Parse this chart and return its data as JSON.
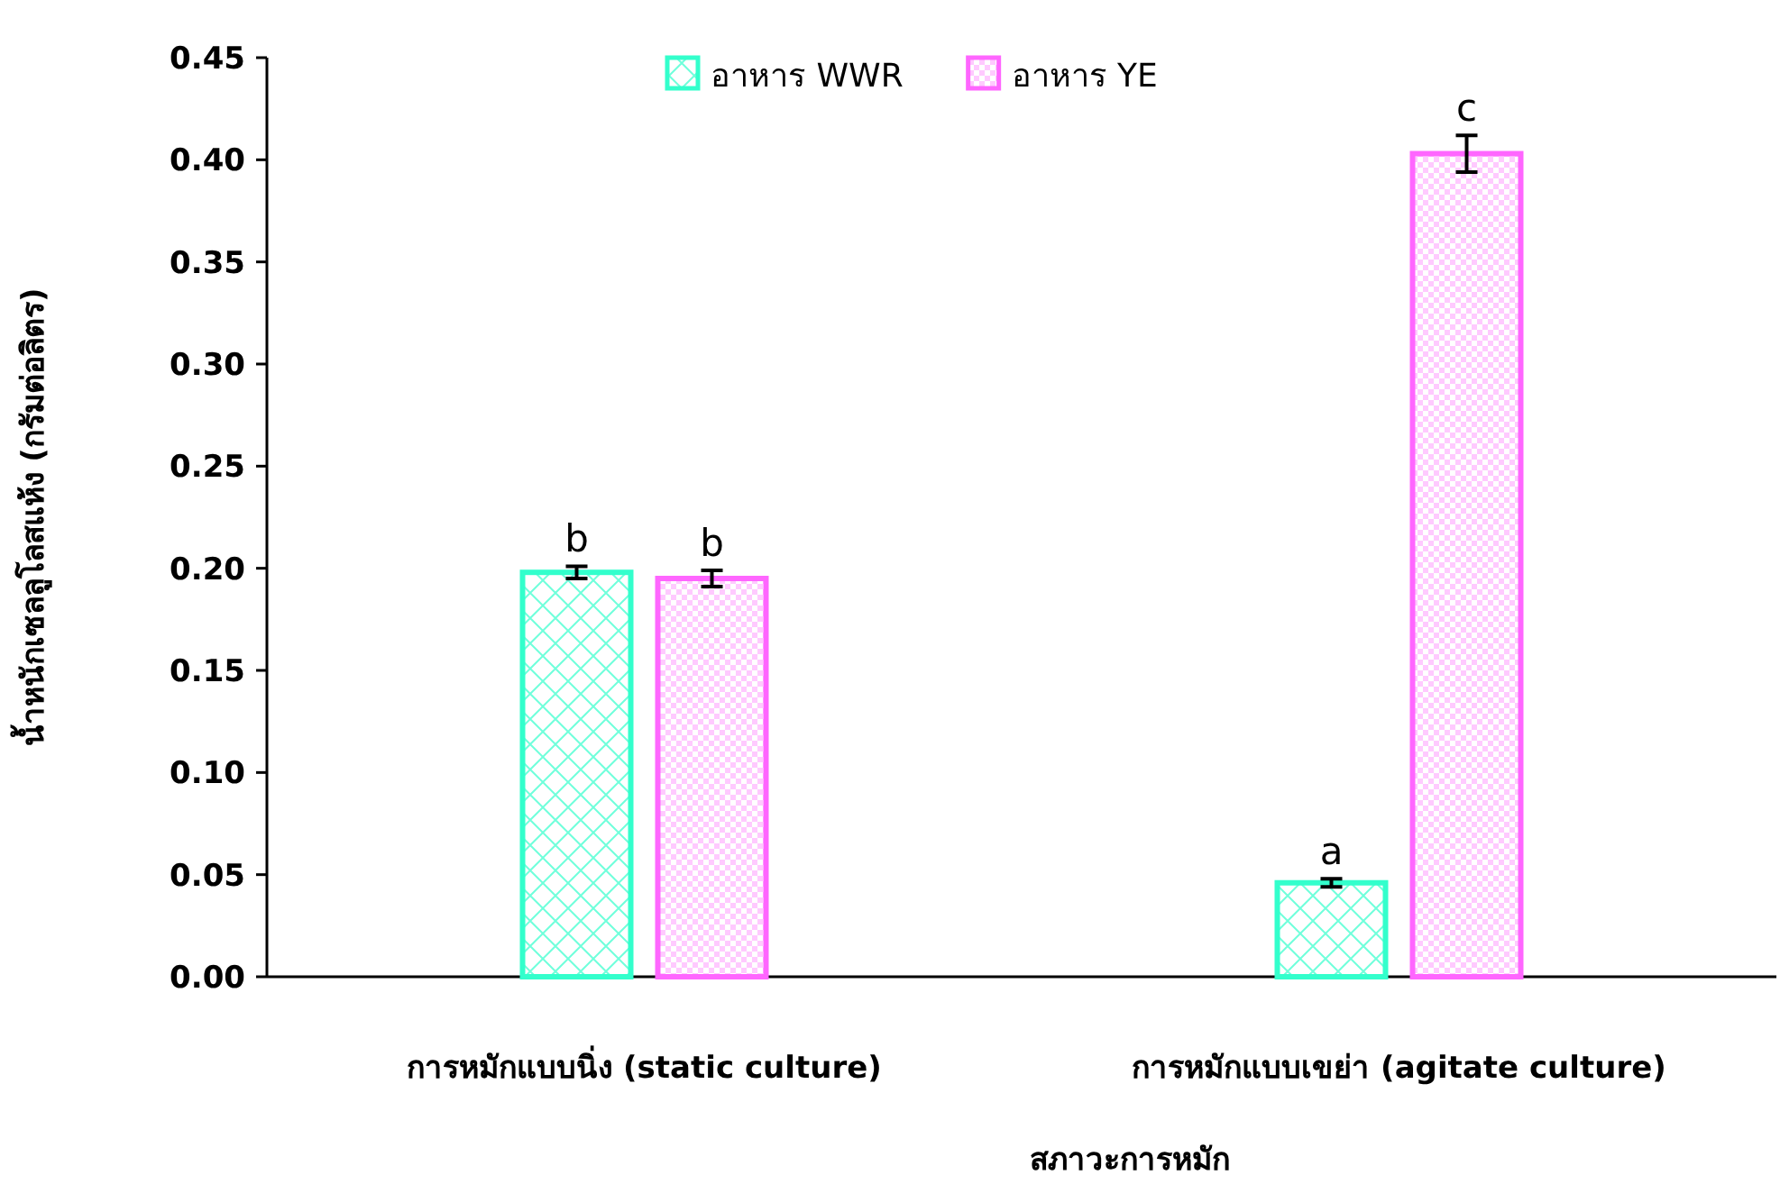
{
  "chart_data": {
    "type": "bar",
    "xlabel": "สภาวะการหมัก",
    "ylabel": "น้ำหนักเซลลูโลสแห้ง (กรัมต่อลิตร)",
    "categories": [
      "การหมักแบบนิ่ง (static culture)",
      "การหมักแบบเขย่า (agitate culture)"
    ],
    "series": [
      {
        "name": "อาหาร WWR",
        "color": "#33ffcc",
        "values": [
          0.198,
          0.046
        ],
        "errors": [
          0.003,
          0.002
        ],
        "value_labels": [
          "b",
          "a"
        ]
      },
      {
        "name": "อาหาร YE",
        "color": "#ff66ff",
        "values": [
          0.195,
          0.403
        ],
        "errors": [
          0.004,
          0.009
        ],
        "value_labels": [
          "b",
          "c"
        ]
      }
    ],
    "ylim": [
      0,
      0.45
    ],
    "yticks": [
      {
        "value": 0,
        "label": "0.00"
      },
      {
        "value": 0.05,
        "label": "0.05"
      },
      {
        "value": 0.1,
        "label": "0.10"
      },
      {
        "value": 0.15,
        "label": "0.15"
      },
      {
        "value": 0.2,
        "label": "0.20"
      },
      {
        "value": 0.25,
        "label": "0.25"
      },
      {
        "value": 0.3,
        "label": "0.30"
      },
      {
        "value": 0.35,
        "label": "0.35"
      },
      {
        "value": 0.4,
        "label": "0.40"
      },
      {
        "value": 0.45,
        "label": "0.45"
      }
    ],
    "legend": "top",
    "grid": false
  }
}
